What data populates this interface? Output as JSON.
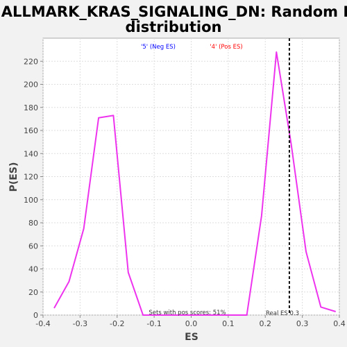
{
  "chart_data": {
    "type": "line",
    "title_line1": "HALLMARK_KRAS_SIGNALING_DN: Random ES",
    "title_line2": "distribution",
    "xlabel": "ES",
    "ylabel": "P(ES)",
    "xlim": [
      -0.4,
      0.4
    ],
    "ylim": [
      0,
      240
    ],
    "xticks": [
      -0.4,
      -0.3,
      -0.2,
      -0.1,
      0.0,
      0.1,
      0.2,
      0.3,
      0.4
    ],
    "xtick_labels": [
      "-0.4",
      "-0.3",
      "-0.2",
      "-0.1",
      "0.0",
      "0.1",
      "0.2",
      "0.3",
      "0.4"
    ],
    "yticks": [
      0,
      20,
      40,
      60,
      80,
      100,
      120,
      140,
      160,
      180,
      200,
      220
    ],
    "ytick_labels": [
      "0",
      "20",
      "40",
      "60",
      "80",
      "100",
      "120",
      "140",
      "160",
      "180",
      "200",
      "220"
    ],
    "grid": true,
    "legend": [
      {
        "label": "'5' (Neg ES)",
        "color": "#0000ff"
      },
      {
        "label": "'4' (Pos ES)",
        "color": "#ff0000"
      }
    ],
    "series": [
      {
        "color": "#ee33ee",
        "x": [
          -0.37,
          -0.33,
          -0.29,
          -0.25,
          -0.21,
          -0.17,
          -0.13,
          -0.09,
          0.11,
          0.15,
          0.19,
          0.23,
          0.27,
          0.31,
          0.35,
          0.39
        ],
        "y": [
          6,
          29,
          75,
          171,
          173,
          37,
          0,
          0,
          0,
          0,
          86,
          228,
          148,
          55,
          7,
          3
        ]
      }
    ],
    "real_es": 0.3,
    "real_es_marker_x": 0.265,
    "annotation_pos_scores": "Sets with pos scores: 51%",
    "annotation_real_es": "Real ES 0.3"
  }
}
